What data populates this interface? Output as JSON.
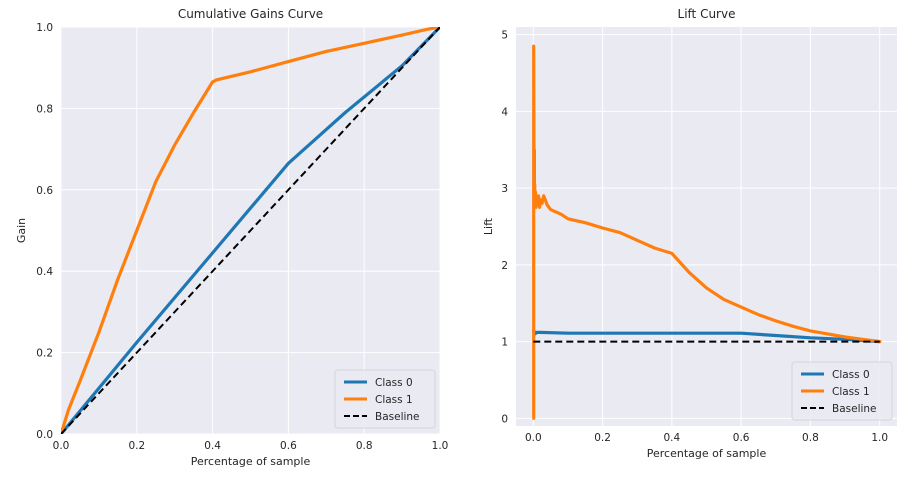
{
  "colors": {
    "plot_bg": "#eaeaf2",
    "grid": "#ffffff",
    "class0": "#1f77b4",
    "class1": "#ff7f0e",
    "baseline": "#000000",
    "text": "#262626"
  },
  "chart_data": [
    {
      "type": "line",
      "title": "Cumulative Gains Curve",
      "xlabel": "Percentage of sample",
      "ylabel": "Gain",
      "xlim": [
        0.0,
        1.0
      ],
      "ylim": [
        0.0,
        1.0
      ],
      "xticks": [
        0.0,
        0.2,
        0.4,
        0.6,
        0.8,
        1.0
      ],
      "xtick_labels": [
        "0.0",
        "0.2",
        "0.4",
        "0.6",
        "0.8",
        "1.0"
      ],
      "yticks": [
        0.0,
        0.2,
        0.4,
        0.6,
        0.8,
        1.0
      ],
      "ytick_labels": [
        "0.0",
        "0.2",
        "0.4",
        "0.6",
        "0.8",
        "1.0"
      ],
      "grid": true,
      "legend_position": "bottom-right",
      "series": [
        {
          "name": "Class 0",
          "color": "#1f77b4",
          "style": "solid",
          "x": [
            0.0,
            0.2,
            0.4,
            0.6,
            0.75,
            0.9,
            1.0
          ],
          "y": [
            0.0,
            0.225,
            0.445,
            0.665,
            0.79,
            0.905,
            1.0
          ]
        },
        {
          "name": "Class 1",
          "color": "#ff7f0e",
          "style": "solid",
          "x": [
            0.0,
            0.02,
            0.05,
            0.1,
            0.15,
            0.2,
            0.25,
            0.3,
            0.35,
            0.4,
            0.41,
            0.5,
            0.6,
            0.7,
            0.8,
            0.9,
            0.97,
            1.0
          ],
          "y": [
            0.0,
            0.06,
            0.13,
            0.25,
            0.38,
            0.5,
            0.62,
            0.71,
            0.79,
            0.865,
            0.87,
            0.89,
            0.915,
            0.94,
            0.96,
            0.98,
            0.995,
            1.0
          ]
        },
        {
          "name": "Baseline",
          "color": "#000000",
          "style": "dashed",
          "x": [
            0.0,
            1.0
          ],
          "y": [
            0.0,
            1.0
          ]
        }
      ]
    },
    {
      "type": "line",
      "title": "Lift Curve",
      "xlabel": "Percentage of sample",
      "ylabel": "Lift",
      "xlim": [
        -0.05,
        1.05
      ],
      "ylim": [
        -0.1,
        5.1
      ],
      "xticks": [
        0.0,
        0.2,
        0.4,
        0.6,
        0.8,
        1.0
      ],
      "xtick_labels": [
        "0.0",
        "0.2",
        "0.4",
        "0.6",
        "0.8",
        "1.0"
      ],
      "yticks": [
        0,
        1,
        2,
        3,
        4,
        5
      ],
      "ytick_labels": [
        "0",
        "1",
        "2",
        "3",
        "4",
        "5"
      ],
      "grid": true,
      "legend_position": "bottom-right",
      "series": [
        {
          "name": "Class 0",
          "color": "#1f77b4",
          "style": "solid",
          "x": [
            0.001,
            0.005,
            0.01,
            0.02,
            0.1,
            0.2,
            0.3,
            0.4,
            0.5,
            0.6,
            0.7,
            0.8,
            0.9,
            1.0
          ],
          "y": [
            1.15,
            1.1,
            1.12,
            1.12,
            1.11,
            1.11,
            1.11,
            1.11,
            1.11,
            1.11,
            1.08,
            1.05,
            1.03,
            1.0
          ]
        },
        {
          "name": "Class 1",
          "color": "#ff7f0e",
          "style": "solid",
          "x": [
            0.001,
            0.001,
            0.002,
            0.002,
            0.003,
            0.003,
            0.004,
            0.005,
            0.006,
            0.008,
            0.01,
            0.012,
            0.015,
            0.018,
            0.02,
            0.025,
            0.03,
            0.04,
            0.05,
            0.06,
            0.08,
            0.1,
            0.12,
            0.15,
            0.2,
            0.25,
            0.3,
            0.35,
            0.4,
            0.45,
            0.5,
            0.55,
            0.6,
            0.65,
            0.7,
            0.75,
            0.8,
            0.85,
            0.9,
            0.95,
            1.0
          ],
          "y": [
            0.0,
            4.85,
            3.3,
            2.75,
            3.5,
            2.9,
            3.05,
            2.8,
            2.95,
            2.75,
            2.85,
            2.8,
            2.9,
            2.75,
            2.85,
            2.8,
            2.9,
            2.78,
            2.72,
            2.7,
            2.66,
            2.6,
            2.58,
            2.55,
            2.48,
            2.42,
            2.32,
            2.22,
            2.15,
            1.9,
            1.7,
            1.55,
            1.45,
            1.35,
            1.27,
            1.2,
            1.14,
            1.1,
            1.06,
            1.03,
            1.0
          ]
        },
        {
          "name": "Baseline",
          "color": "#000000",
          "style": "dashed",
          "x": [
            0.0,
            1.0
          ],
          "y": [
            1.0,
            1.0
          ]
        }
      ]
    }
  ]
}
